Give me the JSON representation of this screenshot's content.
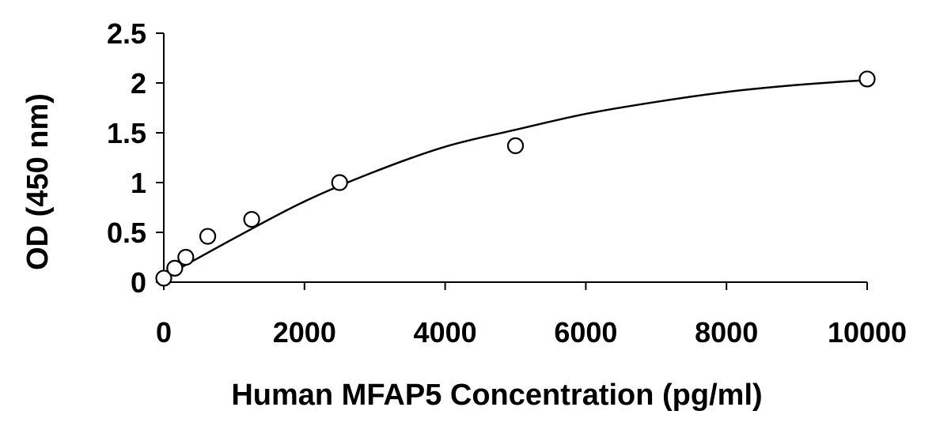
{
  "chart_data": {
    "type": "scatter",
    "title": "",
    "xlabel": "Human MFAP5 Concentration (pg/ml)",
    "ylabel": "OD (450 nm)",
    "xlim": [
      0,
      10000
    ],
    "ylim": [
      0,
      2.5
    ],
    "x_ticks": [
      0,
      2000,
      4000,
      6000,
      8000,
      10000
    ],
    "x_tick_labels": [
      "0",
      "2000",
      "4000",
      "6000",
      "8000",
      "10000"
    ],
    "y_ticks": [
      0,
      0.5,
      1,
      1.5,
      2,
      2.5
    ],
    "y_tick_labels": [
      "0",
      "0.5",
      "1",
      "1.5",
      "2",
      "2.5"
    ],
    "grid": false,
    "legend": "none",
    "colors": {
      "axis": "#000000",
      "marker_stroke": "#000000",
      "marker_fill": "#ffffff",
      "curve": "#000000"
    },
    "series": [
      {
        "x": [
          0,
          156,
          313,
          625,
          1250,
          2500,
          5000,
          10000
        ],
        "y": [
          0.04,
          0.14,
          0.25,
          0.46,
          0.63,
          1.0,
          1.37,
          2.04
        ]
      }
    ],
    "fit_curve": {
      "x": [
        0,
        1000,
        2000,
        3000,
        4000,
        5000,
        6000,
        7000,
        8000,
        9000,
        10000
      ],
      "y": [
        0.05,
        0.44,
        0.81,
        1.11,
        1.36,
        1.53,
        1.69,
        1.81,
        1.91,
        1.98,
        2.03
      ]
    }
  }
}
